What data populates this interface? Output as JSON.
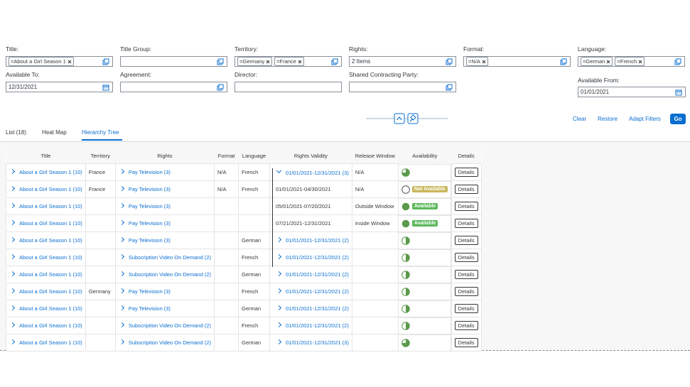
{
  "filters": [
    {
      "label": "Title:",
      "tokens": [
        "=About a Girl Season 1"
      ]
    },
    {
      "label": "Title Group:"
    },
    {
      "label": "Territory:",
      "tokens": [
        "=Germany",
        "=France"
      ]
    },
    {
      "label": "Rights:",
      "value": "2 Items"
    },
    {
      "label": "Format:",
      "tokens": [
        "=N/A"
      ]
    },
    {
      "label": "Language:",
      "tokens": [
        "=German",
        "=French"
      ]
    },
    {
      "label": "Available To:",
      "value": "12/31/2021"
    },
    {
      "label": "Agreement:"
    },
    {
      "label": "Director:"
    },
    {
      "label": "Shared Contracting Party:"
    },
    {
      "label": "Available From:",
      "value": "01/01/2021"
    }
  ],
  "actions": [
    "Clear",
    "Restore",
    "Adapt Filters",
    "Go"
  ],
  "tabs": [
    "List (18)",
    "Heat Map",
    "Hierarchy Tree"
  ],
  "table": {
    "headers": [
      "Title",
      "Territory",
      "Rights",
      "Format",
      "Language",
      "Rights Validity",
      "Release Window",
      "Availability",
      "Details"
    ],
    "rows": [
      [
        "About a Girl Season 1 (10)",
        "France",
        "Pay Television (3)",
        "N/A",
        "French",
        "01/01/2021-12/31/2021 (3)",
        "N/A",
        null,
        "Details"
      ],
      [
        "About a Girl Season 1 (10)",
        "France",
        "Pay Television (3)",
        "N/A",
        "French",
        "01/01/2021-04/30/2021",
        "N/A",
        "Not Available",
        "Details"
      ],
      [
        "About a Girl Season 1 (10)",
        null,
        "Pay Television (3)",
        null,
        null,
        "05/01/2021-07/20/2021",
        "Outside Window",
        "Available",
        "Details"
      ],
      [
        "About a Girl Season 1 (10)",
        null,
        "Pay Television (3)",
        null,
        null,
        "07/21/2021-12/31/2021",
        "Inside Window",
        "Available",
        "Details"
      ],
      [
        "About a Girl Season 1 (10)",
        null,
        "Pay Television (3)",
        null,
        "German",
        "01/01/2021-12/31/2021 (2)",
        null,
        null,
        "Details"
      ],
      [
        "About a Girl Season 1 (10)",
        null,
        "Subscription Video On Demand (2)",
        null,
        "French",
        "01/01/2021-12/31/2021 (2)",
        null,
        null,
        "Details"
      ],
      [
        "About a Girl Season 1 (10)",
        null,
        "Subscription Video On Demand (2)",
        null,
        "German",
        "01/01/2021-12/31/2021 (2)",
        null,
        null,
        "Details"
      ],
      [
        "About a Girl Season 1 (10)",
        "Germany",
        "Pay Television (3)",
        null,
        "French",
        "01/01/2021-12/31/2021 (2)",
        null,
        null,
        "Details"
      ],
      [
        "About a Girl Season 1 (10)",
        null,
        "Pay Television (3)",
        null,
        "German",
        "01/01/2021-12/31/2021 (2)",
        null,
        null,
        "Details"
      ],
      [
        "About a Girl Season 1 (10)",
        null,
        "Subscription Video On Demand (2)",
        null,
        "French",
        "01/01/2021-12/31/2021 (2)",
        null,
        null,
        "Details"
      ],
      [
        "About a Girl Season 1 (10)",
        null,
        "Subscription Video On Demand (2)",
        null,
        "German",
        "01/01/2021-12/31/2021 (3)",
        null,
        null,
        "Details"
      ]
    ]
  }
}
